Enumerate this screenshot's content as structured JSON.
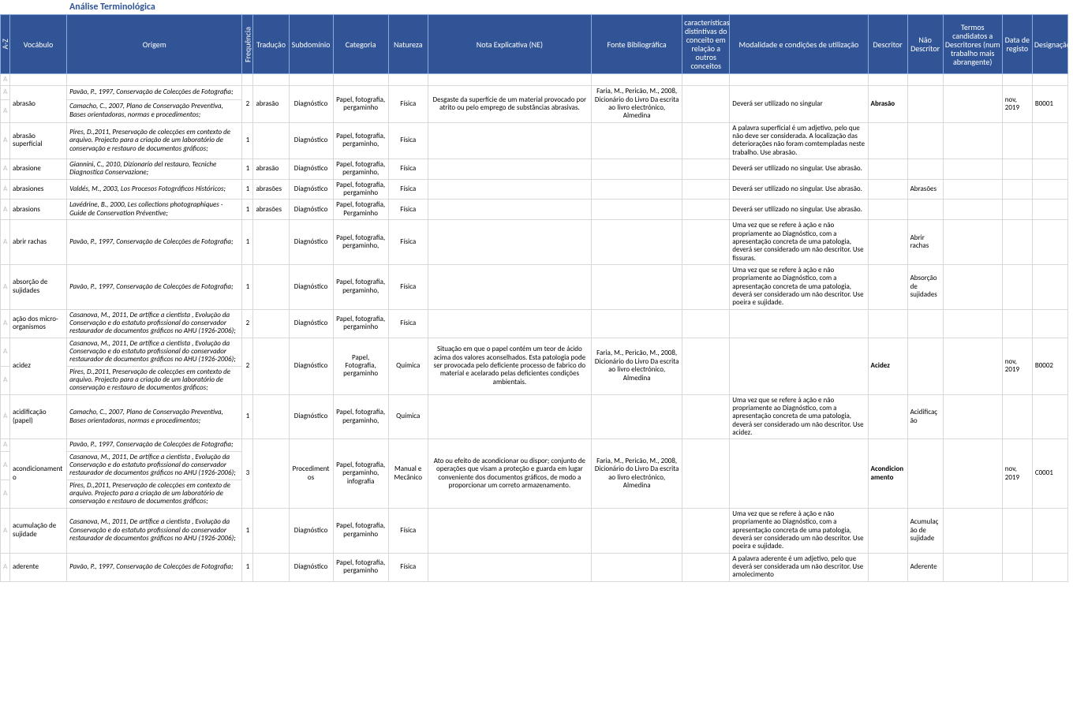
{
  "title": "Análise Terminológica",
  "headers": {
    "az": "A-Z",
    "vocabulo": "Vocábulo",
    "origem": "Origem",
    "freq": "Frequência",
    "traducao": "Tradução",
    "subdominio": "Subdomínio",
    "categoria": "Categoria",
    "natureza": "Natureza",
    "ne": "Nota Explicativa (NE)",
    "fonte": "Fonte Bibliográfica",
    "caracteristicas": "características distintivas do conceito em relação a outros conceitos",
    "modalidade": "Modalidade e condições de utilização",
    "descritor": "Descritor",
    "naoDescritor": "Não Descritor",
    "candidatos": "Termos candidatos a Descritores (num trabalho mais abrangente)",
    "data": "Data de registo",
    "designacao": "Designação"
  },
  "rows": [
    {
      "az_rows": [
        "A",
        "A",
        "A"
      ],
      "voc": "abrasão",
      "origens": [
        "Pavão, P., 1997, Conservação de Colecções de Fotografia;",
        "Camacho, C., 2007, Plano de Conservação Preventiva, Bases orientadoras, normas e procedimentos;"
      ],
      "freq": "2",
      "trad": "abrasão",
      "sub": "Diagnóstico",
      "cat": "Papel, fotografia, pergaminho",
      "nat": "Física",
      "ne": "Desgaste da superfície de um material provocado por atrito ou pelo emprego de substâncias abrasivas.",
      "fonte": "Faria, M., Pericão, M., 2008, Dicionário do Livro Da escrita ao livro electrónico, Almedina",
      "mod": "Deverá ser utilizado no singular",
      "descr": "Abrasão",
      "ndescr": "",
      "cand": "",
      "data": "nov, 2019",
      "desig": "B0001"
    },
    {
      "az_rows": [
        "A"
      ],
      "voc": "abrasão superficial",
      "origens": [
        "Pires, D.,2011, Preservação de colecções em contexto de arquivo. Projecto para a criação de um laboratório de conservação e restauro de documentos gráficos;"
      ],
      "freq": "1",
      "trad": "",
      "sub": "Diagnóstico",
      "cat": "Papel, fotografia, pergaminho,",
      "nat": "Física",
      "ne": "",
      "fonte": "",
      "mod": "A palavra superficial é um adjetivo, pelo que não deve ser considerada. A localização das deteriorações não foram comtempladas neste trabalho. Use abrasão.",
      "descr": "",
      "ndescr": "",
      "cand": "",
      "data": "",
      "desig": ""
    },
    {
      "az_rows": [
        "A"
      ],
      "voc": "abrasione",
      "origens": [
        "Giannini, C., 2010, Dizionario del restauro, Tecniche Diagnostica Conservazione;"
      ],
      "freq": "1",
      "trad": "abrasão",
      "sub": "Diagnóstico",
      "cat": "Papel, fotografia, pergaminho,",
      "nat": "Física",
      "ne": "",
      "fonte": "",
      "mod": "Deverá ser utilizado no singular. Use abrasão.",
      "descr": "",
      "ndescr": "",
      "cand": "",
      "data": "",
      "desig": ""
    },
    {
      "az_rows": [
        "A"
      ],
      "voc": "abrasiones",
      "origens": [
        "Valdés, M., 2003, Los Procesos Fotográficos Históricos;"
      ],
      "freq": "1",
      "trad": "abrasões",
      "sub": "Diagnóstico",
      "cat": "Papel, fotografia, pergaminho",
      "nat": "Física",
      "ne": "",
      "fonte": "",
      "mod": "Deverá ser utilizado no singular. Use abrasão.",
      "descr": "",
      "ndescr": "Abrasões",
      "cand": "",
      "data": "",
      "desig": ""
    },
    {
      "az_rows": [
        "A"
      ],
      "voc": "abrasions",
      "origens": [
        "Lavédrine, B.,  2000, Les collections photographiques - Guide de Conservation Préventive;"
      ],
      "freq": "1",
      "trad": "abrasões",
      "sub": "Diagnóstico",
      "cat": "Papel, fotografia, Pergaminho",
      "nat": "Física",
      "ne": "",
      "fonte": "",
      "mod": "Deverá ser utilizado no singular. Use abrasão.",
      "descr": "",
      "ndescr": "",
      "cand": "",
      "data": "",
      "desig": ""
    },
    {
      "az_rows": [
        "A"
      ],
      "voc": "abrir rachas",
      "origens": [
        "Pavão, P., 1997, Conservação de Colecções de Fotografia;"
      ],
      "freq": "1",
      "trad": "",
      "sub": "Diagnóstico",
      "cat": "Papel, fotografia, pergaminho,",
      "nat": "Física",
      "ne": "",
      "fonte": "",
      "mod": "Uma vez que se refere à ação e não propriamente ao Diagnóstico, com a apresentação concreta de uma patologia, deverá ser considerado um não descritor. Use fissuras.",
      "descr": "",
      "ndescr": "Abrir rachas",
      "cand": "",
      "data": "",
      "desig": ""
    },
    {
      "az_rows": [
        "A"
      ],
      "voc": "absorção de sujidades",
      "origens": [
        "Pavão, P., 1997, Conservação de Colecções de Fotografia;"
      ],
      "freq": "1",
      "trad": "",
      "sub": "Diagnóstico",
      "cat": "Papel, fotografia, pergaminho,",
      "nat": "Física",
      "ne": "",
      "fonte": "",
      "mod": "Uma vez que se refere à ação e não propriamente ao Diagnóstico, com a apresentação concreta de uma patologia, deverá ser considerado um não descritor. Use poeira e sujidade.",
      "descr": "",
      "ndescr": "Absorção de sujidades",
      "cand": "",
      "data": "",
      "desig": ""
    },
    {
      "az_rows": [
        "A"
      ],
      "voc": "ação dos micro-organismos",
      "origens": [
        "Casanova, M., 2011, De artífice a cientista ,  Evolução da Conservação e do estatuto profissional do conservador restaurador de documentos gráficos no AHU  (1926-2006);"
      ],
      "freq": "2",
      "trad": "",
      "sub": "Diagnóstico",
      "cat": "Papel, fotografia, pergaminho",
      "nat": "Física",
      "ne": "",
      "fonte": "",
      "mod": "",
      "descr": "",
      "ndescr": "",
      "cand": "",
      "data": "",
      "desig": ""
    },
    {
      "az_rows": [
        "A",
        "A"
      ],
      "voc": "acidez",
      "origens": [
        "Casanova, M., 2011, De artífice a cientista ,  Evolução da Conservação e do estatuto profissional do conservador restaurador de documentos gráficos no AHU  (1926-2006);",
        "Pires, D.,2011, Preservação de colecções em contexto de arquivo. Projecto para a criação de um laboratório de conservação e restauro de documentos gráficos;"
      ],
      "freq": "2",
      "trad": "",
      "sub": "Diagnóstico",
      "cat": "Papel, Fotografia, pergaminho",
      "nat": "Química",
      "ne": "Situação em que o papel contém um teor de ácido acima dos valores aconselhados. Esta patologia pode ser provocada pelo deficiente processo de fabrico do material e acelarado pelas deficientes condições ambientais.",
      "fonte": "Faria, M., Pericão, M., 2008, Dicionário do Livro Da escrita ao livro electrónico, Almedina",
      "mod": "",
      "descr": "Acidez",
      "ndescr": "",
      "cand": "",
      "data": "nov, 2019",
      "desig": "B0002"
    },
    {
      "az_rows": [
        "A"
      ],
      "voc": "acidificação (papel)",
      "origens": [
        "Camacho, C., 2007, Plano de Conservação Preventiva, Bases orientadoras, normas e procedimentos;"
      ],
      "freq": "1",
      "trad": "",
      "sub": "Diagnóstico",
      "cat": "Papel, fotografia, pergaminho,",
      "nat": "Química",
      "ne": "",
      "fonte": "",
      "mod": "Uma vez que se refere à ação e não propriamente ao Diagnóstico, com a apresentação concreta de uma patologia, deverá ser considerado um não descritor. Use acidez.",
      "descr": "",
      "ndescr": "Acidificação",
      "cand": "",
      "data": "",
      "desig": ""
    },
    {
      "az_rows": [
        "A",
        "A",
        "A"
      ],
      "voc": "acondicionamento",
      "origens": [
        "Pavão, P., 1997, Conservação de Colecções de Fotografia;",
        "Casanova, M., 2011, De artífice a cientista ,  Evolução da Conservação e do estatuto profissional do conservador restaurador de documentos gráficos no AHU  (1926-2006);",
        "Pires, D.,2011, Preservação de colecções em contexto de arquivo. Projecto para a criação de um laboratório de conservação e restauro de documentos gráficos;"
      ],
      "freq": "3",
      "trad": "",
      "sub": "Procedimentos",
      "cat": "Papel, fotografia, pergaminho, infografia",
      "nat": "Manual e Mecânico",
      "ne": "Ato ou efeito de acondicionar ou dispor; conjunto de operações que visam a proteção e guarda em lugar conveniente dos documentos gráficos, de modo a proporcionar um correto armazenamento.",
      "fonte": "Faria, M., Pericão, M., 2008, Dicionário do Livro Da escrita ao livro electrónico, Almedina",
      "mod": "",
      "descr": "Acondicionamento",
      "ndescr": "",
      "cand": "",
      "data": "nov, 2019",
      "desig": "C0001"
    },
    {
      "az_rows": [
        "A"
      ],
      "voc": "acumulação de sujidade",
      "origens": [
        "Casanova, M., 2011, De artífice a cientista ,  Evolução da Conservação e do estatuto profissional do conservador restaurador de documentos gráficos no AHU  (1926-2006);"
      ],
      "freq": "1",
      "trad": "",
      "sub": "Diagnóstico",
      "cat": "Papel, fotografia, pergaminho",
      "nat": "Física",
      "ne": "",
      "fonte": "",
      "mod": "Uma vez que se refere à ação e não propriamente ao Diagnóstico, com a apresentação concreta de uma patologia, deverá ser considerado um não descritor. Use poeira e sujidade.",
      "descr": "",
      "ndescr": "Acumulação de sujidade",
      "cand": "",
      "data": "",
      "desig": ""
    },
    {
      "az_rows": [
        "A"
      ],
      "voc": "aderente",
      "origens": [
        "Pavão, P., 1997, Conservação de Colecções de Fotografia;"
      ],
      "freq": "1",
      "trad": "",
      "sub": "Diagnóstico",
      "cat": "Papel, fotografia, pergaminho",
      "nat": "Física",
      "ne": "",
      "fonte": "",
      "mod": "A palavra aderente é um adjetivo, pelo que deverá ser considerada um não descritor. Use amolecimento",
      "descr": "",
      "ndescr": "Aderente",
      "cand": "",
      "data": "",
      "desig": ""
    }
  ]
}
